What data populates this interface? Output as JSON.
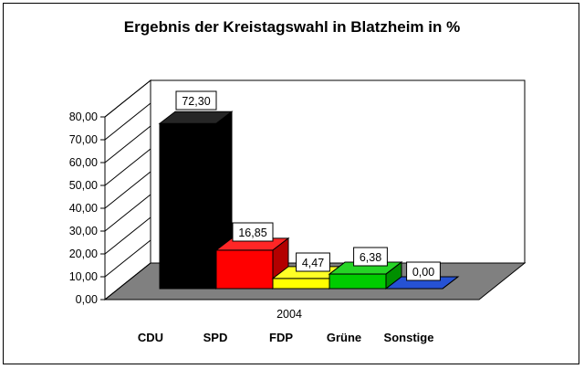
{
  "chart_data": {
    "type": "bar",
    "title": "Ergebnis der Kreistagswahl in Blatzheim in %",
    "xlabel": "2004",
    "ylabel": "",
    "ylim": [
      0,
      80
    ],
    "yticks": [
      "0,00",
      "10,00",
      "20,00",
      "30,00",
      "40,00",
      "50,00",
      "60,00",
      "70,00",
      "80,00"
    ],
    "categories": [
      "CDU",
      "SPD",
      "FDP",
      "Grüne",
      "Sonstige"
    ],
    "values": [
      72.3,
      16.85,
      4.47,
      6.38,
      0.0
    ],
    "value_labels": [
      "72,30",
      "16,85",
      "4,47",
      "6,38",
      "0,00"
    ],
    "colors": [
      "#000000",
      "#ff0000",
      "#ffff00",
      "#00cc00",
      "#0033cc"
    ],
    "floor_color": "#808080",
    "grid": false,
    "legend": "none"
  }
}
